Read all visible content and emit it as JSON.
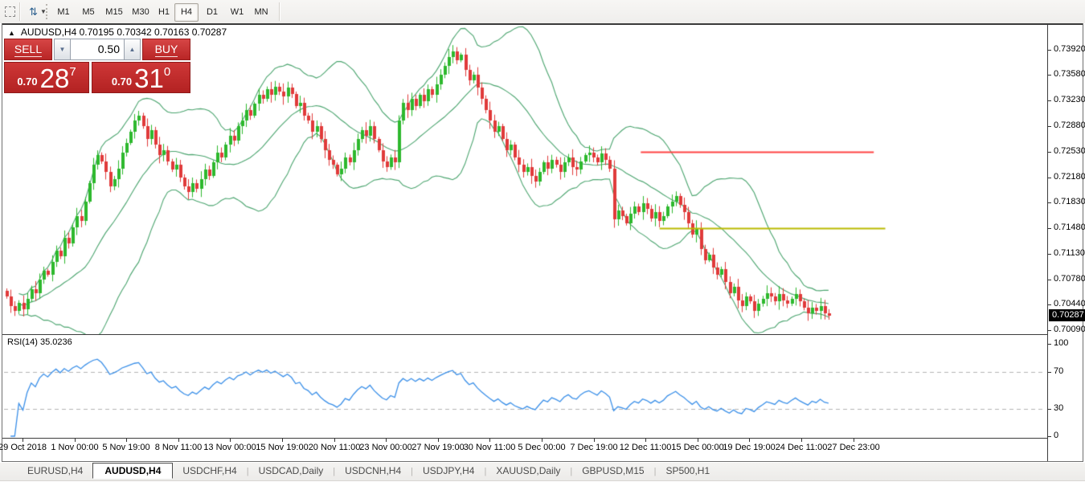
{
  "toolbar": {
    "timeframes": [
      "M1",
      "M5",
      "M15",
      "M30",
      "H1",
      "H4",
      "D1",
      "W1",
      "MN"
    ],
    "active_timeframe": "H4",
    "icons": [
      "selection-rect-icon",
      "updown-arrows-icon",
      "dropdown-caret-icon"
    ]
  },
  "chart": {
    "title": "AUDUSD,H4  0.70195 0.70342 0.70163 0.70287",
    "symbol": "AUDUSD",
    "timeframe": "H4",
    "ohlc": [
      "0.70195",
      "0.70342",
      "0.70163",
      "0.70287"
    ],
    "price_axis_labels": [
      "0.73920",
      "0.73580",
      "0.73230",
      "0.72880",
      "0.72530",
      "0.72180",
      "0.71830",
      "0.71480",
      "0.71130",
      "0.70780",
      "0.70440",
      "0.70090"
    ],
    "current_price": "0.70287",
    "date_axis_labels": [
      "29 Oct 2018",
      "1 Nov 00:00",
      "5 Nov 19:00",
      "8 Nov 11:00",
      "13 Nov 00:00",
      "15 Nov 19:00",
      "20 Nov 11:00",
      "23 Nov 00:00",
      "27 Nov 19:00",
      "30 Nov 11:00",
      "5 Dec 00:00",
      "7 Dec 19:00",
      "12 Dec 11:00",
      "15 Dec 00:00",
      "19 Dec 19:00",
      "24 Dec 11:00",
      "27 Dec 23:00"
    ],
    "colors": {
      "bull": "#2db82d",
      "bear": "#e03a3a",
      "bands": "#4aa46e",
      "rsi_line": "#3a8fe8",
      "hline_red": "#ff4242",
      "hline_yellow": "#b9b900",
      "level_dash": "#b3b3b3",
      "current_price_bg": "#000000"
    }
  },
  "trade_panel": {
    "sell_label": "SELL",
    "buy_label": "BUY",
    "volume": "0.50",
    "sell_price": "0.70287",
    "buy_price": "0.70310",
    "sell_frac": "0.70",
    "sell_big": "28",
    "sell_sup": "7",
    "buy_frac": "0.70",
    "buy_big": "31",
    "buy_sup": "0",
    "spin_down": "▼",
    "spin_up": "▲"
  },
  "rsi_panel": {
    "label": "RSI(14) 35.0236",
    "scale_labels": [
      "100",
      "70",
      "30",
      "0"
    ],
    "level_lines": [
      70,
      30
    ]
  },
  "tabs": {
    "active": "AUDUSD,H4",
    "items": [
      "EURUSD,H4",
      "AUDUSD,H4",
      "USDCHF,H4",
      "USDCAD,Daily",
      "USDCNH,H4",
      "USDJPY,H4",
      "XAUUSD,Daily",
      "GBPUSD,M15",
      "SP500,H1"
    ]
  },
  "chart_data": {
    "type": "candlestick",
    "symbol": "AUDUSD",
    "timeframe": "H4",
    "x_start": "29 Oct 2018",
    "x_end": "27 Dec 2018 23:00",
    "visible_price_range": [
      0.70046,
      0.7426
    ],
    "axis_anchor": {
      "price_top": 0.7392,
      "price_bottom": 0.7009
    },
    "closes": [
      0.7055,
      0.7042,
      0.7035,
      0.7046,
      0.7038,
      0.7052,
      0.7065,
      0.706,
      0.7078,
      0.709,
      0.7085,
      0.7102,
      0.7118,
      0.711,
      0.7135,
      0.7128,
      0.715,
      0.7165,
      0.7158,
      0.7185,
      0.721,
      0.7235,
      0.7248,
      0.724,
      0.7225,
      0.7205,
      0.7215,
      0.723,
      0.7252,
      0.7265,
      0.728,
      0.7295,
      0.7302,
      0.7288,
      0.727,
      0.7282,
      0.7262,
      0.7248,
      0.7255,
      0.724,
      0.7228,
      0.7235,
      0.7218,
      0.7205,
      0.7198,
      0.721,
      0.7202,
      0.7215,
      0.7228,
      0.722,
      0.7238,
      0.7252,
      0.7245,
      0.7262,
      0.7275,
      0.7268,
      0.7288,
      0.7295,
      0.731,
      0.7302,
      0.7318,
      0.733,
      0.7325,
      0.7338,
      0.733,
      0.7342,
      0.7335,
      0.7328,
      0.734,
      0.7332,
      0.7315,
      0.732,
      0.7302,
      0.7295,
      0.728,
      0.7288,
      0.727,
      0.7255,
      0.7242,
      0.7235,
      0.7222,
      0.723,
      0.7245,
      0.7238,
      0.7255,
      0.727,
      0.7282,
      0.7275,
      0.7288,
      0.727,
      0.7255,
      0.724,
      0.7232,
      0.7245,
      0.7238,
      0.7295,
      0.732,
      0.731,
      0.7325,
      0.7315,
      0.733,
      0.7322,
      0.7338,
      0.733,
      0.7345,
      0.7358,
      0.737,
      0.7382,
      0.739,
      0.7378,
      0.7385,
      0.7365,
      0.735,
      0.7358,
      0.734,
      0.7325,
      0.731,
      0.7295,
      0.728,
      0.7288,
      0.727,
      0.7255,
      0.7262,
      0.7245,
      0.7235,
      0.7225,
      0.7232,
      0.722,
      0.7212,
      0.7225,
      0.7238,
      0.723,
      0.7242,
      0.7235,
      0.7225,
      0.7238,
      0.7245,
      0.7232,
      0.7228,
      0.724,
      0.7248,
      0.7252,
      0.7245,
      0.7238,
      0.725,
      0.7242,
      0.723,
      0.716,
      0.7172,
      0.7165,
      0.7155,
      0.7168,
      0.7178,
      0.717,
      0.7182,
      0.7175,
      0.7162,
      0.717,
      0.7158,
      0.7165,
      0.7178,
      0.7185,
      0.7192,
      0.718,
      0.717,
      0.7155,
      0.714,
      0.7148,
      0.712,
      0.7105,
      0.7112,
      0.7095,
      0.7085,
      0.7092,
      0.7075,
      0.706,
      0.7068,
      0.705,
      0.7042,
      0.7055,
      0.7048,
      0.7035,
      0.7045,
      0.7052,
      0.706,
      0.7055,
      0.7048,
      0.7058,
      0.705,
      0.7045,
      0.7052,
      0.7058,
      0.7048,
      0.704,
      0.7032,
      0.704,
      0.7035,
      0.7042,
      0.7032,
      0.7029
    ],
    "indicators": [
      {
        "name": "Bollinger Bands",
        "period": 20,
        "deviation": 2,
        "color": "#4aa46e"
      },
      {
        "name": "RSI",
        "period": 14,
        "current": 35.0236,
        "levels": [
          70,
          30
        ],
        "color": "#3a8fe8"
      }
    ],
    "hlines": [
      {
        "price": 0.7253,
        "color": "#ff4242",
        "x1_frac": 0.611,
        "x2_frac": 0.834
      },
      {
        "price": 0.7148,
        "color": "#b9b900",
        "x1_frac": 0.629,
        "x2_frac": 0.845
      }
    ]
  }
}
